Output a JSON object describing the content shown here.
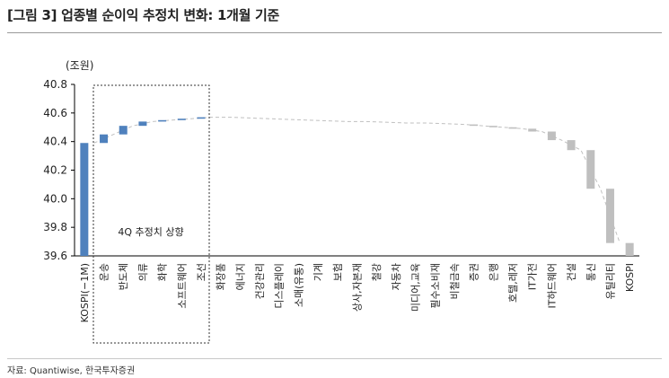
{
  "header": {
    "title": "[그림 3] 업종별 순이익 추정치 변화: 1개월 기준"
  },
  "footer": {
    "source": "자료: Quantiwise, 한국투자증권"
  },
  "colors": {
    "base": "#4f81bd",
    "up": "#4f81bd",
    "down": "#bfbfbf",
    "connector": "#bfbfbf",
    "axis": "#000000"
  },
  "chart_data": {
    "type": "bar",
    "subtype": "waterfall",
    "unit_label": "(조원)",
    "ylim": [
      39.6,
      40.8
    ],
    "yticks": [
      "40.8",
      "40.6",
      "40.4",
      "40.2",
      "40.0",
      "39.8",
      "39.6"
    ],
    "grid": false,
    "annotation": "4Q 추정치 상향",
    "categories": [
      "KOSPI(−1M)",
      "운송",
      "반도체",
      "의류",
      "화학",
      "소프트웨어",
      "조선",
      "화장품",
      "에너지",
      "건강관리",
      "디스플레이",
      "소매(유통)",
      "기계",
      "보험",
      "상사,자본재",
      "철강",
      "자동차",
      "미디어,교육",
      "필수소비재",
      "비철금속",
      "증권",
      "은행",
      "호텔,레저",
      "IT가전",
      "IT하드웨어",
      "건설",
      "통신",
      "유틸리티",
      "KOSPI"
    ],
    "bars": [
      {
        "kind": "total",
        "from": 39.6,
        "to": 40.39
      },
      {
        "kind": "up",
        "from": 40.39,
        "to": 40.45
      },
      {
        "kind": "up",
        "from": 40.45,
        "to": 40.51
      },
      {
        "kind": "up",
        "from": 40.51,
        "to": 40.54
      },
      {
        "kind": "up",
        "from": 40.54,
        "to": 40.55
      },
      {
        "kind": "up",
        "from": 40.55,
        "to": 40.56
      },
      {
        "kind": "up",
        "from": 40.56,
        "to": 40.57
      },
      {
        "kind": "flat",
        "from": 40.57,
        "to": 40.57
      },
      {
        "kind": "flat",
        "from": 40.57,
        "to": 40.565
      },
      {
        "kind": "flat",
        "from": 40.565,
        "to": 40.56
      },
      {
        "kind": "flat",
        "from": 40.56,
        "to": 40.555
      },
      {
        "kind": "flat",
        "from": 40.555,
        "to": 40.55
      },
      {
        "kind": "flat",
        "from": 40.55,
        "to": 40.545
      },
      {
        "kind": "flat",
        "from": 40.545,
        "to": 40.54
      },
      {
        "kind": "flat",
        "from": 40.54,
        "to": 40.54
      },
      {
        "kind": "flat",
        "from": 40.54,
        "to": 40.535
      },
      {
        "kind": "flat",
        "from": 40.535,
        "to": 40.53
      },
      {
        "kind": "flat",
        "from": 40.53,
        "to": 40.53
      },
      {
        "kind": "flat",
        "from": 40.53,
        "to": 40.525
      },
      {
        "kind": "flat",
        "from": 40.525,
        "to": 40.52
      },
      {
        "kind": "down",
        "from": 40.52,
        "to": 40.51
      },
      {
        "kind": "down",
        "from": 40.51,
        "to": 40.5
      },
      {
        "kind": "down",
        "from": 40.5,
        "to": 40.49
      },
      {
        "kind": "down",
        "from": 40.49,
        "to": 40.47
      },
      {
        "kind": "down",
        "from": 40.47,
        "to": 40.41
      },
      {
        "kind": "down",
        "from": 40.41,
        "to": 40.34
      },
      {
        "kind": "down",
        "from": 40.34,
        "to": 40.07
      },
      {
        "kind": "down",
        "from": 40.07,
        "to": 39.69
      },
      {
        "kind": "total",
        "from": 39.6,
        "to": 39.69
      }
    ]
  }
}
